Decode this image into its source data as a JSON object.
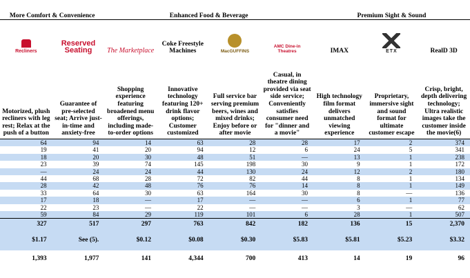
{
  "groups": [
    "More Comfort & Convenience",
    "Enhanced Food & Beverage",
    "Premium Sight & Sound"
  ],
  "columns": [
    {
      "logo": "Recliners",
      "description": "Motorized, plush recliners with leg rest; Relax at the push of a button"
    },
    {
      "logo": "Reserved Seating",
      "description": "Guarantee of pre-selected seat; Arrive just-in-time and anxiety-free"
    },
    {
      "logo": "The Marketplace",
      "description": "Shopping experience featuring broadened menu offerings, including made-to-order options"
    },
    {
      "title": "Coke Freestyle Machines",
      "description": "Innovative technology featuring 120+ drink flavor options; Customer customized"
    },
    {
      "logo": "MacGUFFINS",
      "description": "Full service bar serving premium beers, wines and mixed drinks; Enjoy before or after movie"
    },
    {
      "logo": "AMC Dine-in Theatres",
      "description": "Casual, in theatre dining provided via seat side service; Conveniently satisfies consumer need for \"dinner and a movie\""
    },
    {
      "title": "IMAX",
      "description": "High technology film format delivers unmatched viewing experience"
    },
    {
      "logo": "ETX",
      "description": "Proprietary, immersive sight and sound format for ultimate customer escape"
    },
    {
      "title": "RealD 3D",
      "description": "Crisp, bright, depth delivering technology; Ultra realistic images take the customer inside the movie(6)"
    }
  ],
  "rows": [
    [
      "64",
      "94",
      "14",
      "63",
      "28",
      "28",
      "17",
      "2",
      "374"
    ],
    [
      "19",
      "41",
      "20",
      "94",
      "12",
      "6",
      "24",
      "5",
      "341"
    ],
    [
      "18",
      "20",
      "30",
      "48",
      "51",
      "—",
      "13",
      "1",
      "238"
    ],
    [
      "23",
      "39",
      "74",
      "145",
      "198",
      "30",
      "9",
      "1",
      "172"
    ],
    [
      "—",
      "24",
      "24",
      "44",
      "130",
      "24",
      "12",
      "2",
      "180"
    ],
    [
      "44",
      "68",
      "28",
      "72",
      "82",
      "44",
      "8",
      "1",
      "134"
    ],
    [
      "28",
      "42",
      "48",
      "76",
      "76",
      "14",
      "8",
      "1",
      "149"
    ],
    [
      "33",
      "64",
      "30",
      "63",
      "164",
      "30",
      "8",
      "—",
      "136"
    ],
    [
      "17",
      "18",
      "—",
      "17",
      "—",
      "—",
      "6",
      "1",
      "77"
    ],
    [
      "22",
      "23",
      "—",
      "22",
      "—",
      "—",
      "3",
      "—",
      "62"
    ],
    [
      "59",
      "84",
      "29",
      "119",
      "101",
      "6",
      "28",
      "1",
      "507"
    ]
  ],
  "totals": [
    "327",
    "517",
    "297",
    "763",
    "842",
    "182",
    "136",
    "15",
    "2,370"
  ],
  "prices": [
    "$1.17",
    "See (5).",
    "$0.12",
    "$0.08",
    "$0.30",
    "$5.83",
    "$5.81",
    "$5.23",
    "$3.32"
  ],
  "counts": [
    "1,393",
    "1,977",
    "141",
    "4,344",
    "700",
    "413",
    "14",
    "19",
    "96"
  ]
}
